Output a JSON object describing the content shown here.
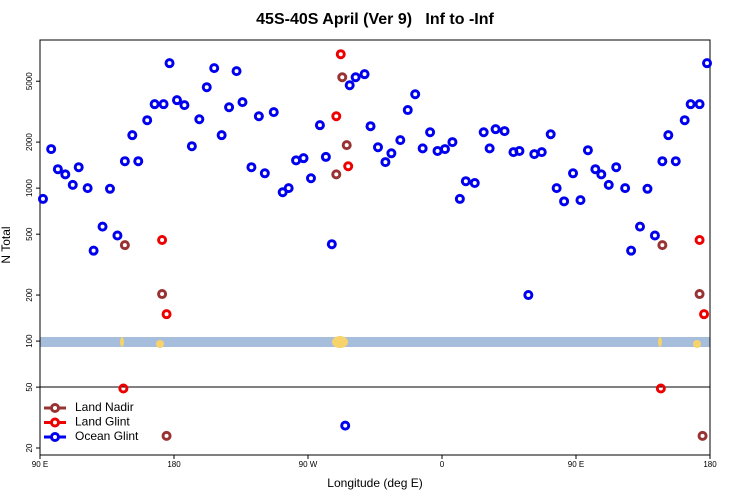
{
  "chart_data": {
    "type": "scatter",
    "title": "45S-40S April (Ver 9)   Inf to -Inf",
    "x_label": "Longitude (deg E)",
    "y_label": "N Total",
    "log_y": true,
    "legend": "bottom-left",
    "xlim": [
      90,
      540
    ],
    "xticks": [
      {
        "value": 90,
        "label": "90 E"
      },
      180,
      {
        "value": 270,
        "label": "90 W"
      },
      {
        "value": 360,
        "label": "0"
      },
      {
        "value": 450,
        "label": "90 E"
      },
      {
        "value": 540,
        "label": "180"
      }
    ],
    "ylim": [
      18,
      9300
    ],
    "yticks": [
      20,
      50,
      100,
      200,
      500,
      1000,
      2000,
      5000
    ],
    "series": [
      {
        "name": "Land Nadir",
        "color": "#993333",
        "x": [
          147,
          172,
          175,
          293,
          296,
          289,
          508,
          533,
          535
        ],
        "values": [
          424,
          203,
          24,
          5310,
          1910,
          1230,
          424,
          203,
          24
        ]
      },
      {
        "name": "Land Glint",
        "color": "#ee0000",
        "x": [
          146,
          172,
          175,
          292,
          289,
          297,
          507,
          533,
          536
        ],
        "values": [
          49,
          458,
          150,
          7510,
          2950,
          1390,
          49,
          458,
          150
        ]
      },
      {
        "name": "Ocean Glint",
        "color": "#0000ee",
        "x": [
          92,
          97.5,
          102,
          107,
          112,
          116,
          122,
          126,
          132,
          137,
          142,
          147,
          152,
          156,
          162,
          167,
          173,
          177,
          182,
          187,
          192,
          197,
          202,
          207,
          212,
          217,
          222,
          226,
          232,
          237,
          241,
          247,
          253,
          257,
          262,
          267,
          272,
          278,
          282,
          286,
          295,
          298,
          302,
          308,
          312,
          317,
          322,
          326,
          332,
          337,
          342,
          347,
          352,
          357,
          362,
          367,
          372,
          376,
          382,
          388,
          392,
          396,
          402,
          408,
          412,
          418,
          422,
          427,
          433,
          437,
          442,
          448,
          453,
          458,
          463,
          467,
          472,
          477,
          483,
          487,
          493,
          498,
          503,
          508,
          512,
          517,
          523,
          527,
          533,
          538
        ],
        "values": [
          850,
          1800,
          1330,
          1230,
          1050,
          1370,
          1000,
          390,
          560,
          990,
          490,
          1500,
          2220,
          1500,
          2780,
          3540,
          3540,
          6560,
          3760,
          3490,
          1880,
          2820,
          4570,
          6090,
          2220,
          3380,
          5820,
          3650,
          1370,
          2950,
          1250,
          3140,
          940,
          1000,
          1520,
          1570,
          1160,
          2580,
          1600,
          430,
          28,
          4710,
          5310,
          5560,
          2540,
          1850,
          1480,
          1690,
          2060,
          3240,
          4110,
          1820,
          2320,
          1750,
          1800,
          2000,
          850,
          1110,
          1080,
          2320,
          1820,
          2430,
          2360,
          1720,
          1750,
          200,
          1670,
          1720,
          2250,
          1000,
          820,
          1250,
          835,
          1770,
          1330,
          1230,
          1050,
          1370,
          1000,
          390,
          560,
          990,
          490,
          1500,
          2220,
          1500,
          2780,
          3540,
          3540,
          6560
        ]
      }
    ]
  }
}
